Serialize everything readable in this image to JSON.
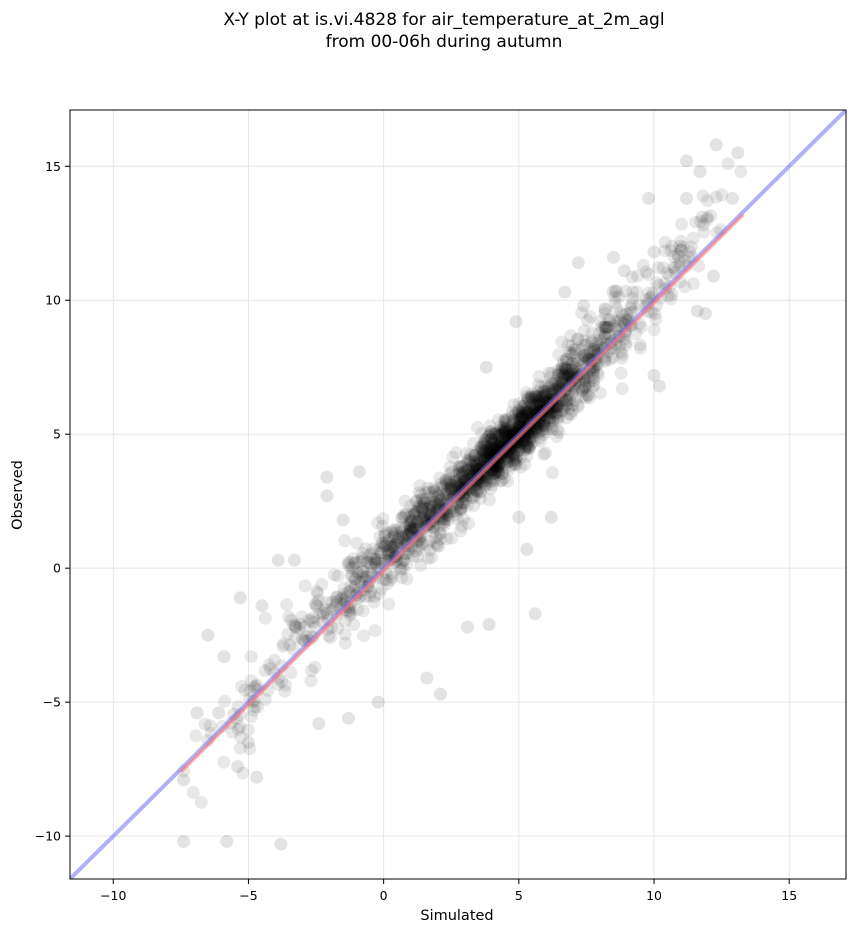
{
  "chart_data": {
    "type": "scatter",
    "title_lines": [
      "X-Y plot at is.vi.4828 for air_temperature_at_2m_agl",
      "from 00-06h during autumn"
    ],
    "xlabel": "Simulated",
    "ylabel": "Observed",
    "xlim": [
      -11.6,
      17.1
    ],
    "ylim": [
      -11.6,
      17.1
    ],
    "xticks": [
      -10,
      -5,
      0,
      5,
      10,
      15
    ],
    "yticks": [
      -10,
      -5,
      0,
      5,
      10,
      15
    ],
    "xtick_labels": [
      "−10",
      "−5",
      "0",
      "5",
      "10",
      "15"
    ],
    "ytick_labels": [
      "−10",
      "−5",
      "0",
      "5",
      "10",
      "15"
    ],
    "grid": true,
    "point_color": "#000000",
    "point_opacity": 0.09,
    "series": [
      {
        "kind": "one-to-one line",
        "color": "#6f6ff0",
        "x": [
          -11.6,
          17.1
        ],
        "y": [
          -11.6,
          17.1
        ]
      },
      {
        "kind": "regression line",
        "color": "#ff7777",
        "x": [
          -7.5,
          13.3
        ],
        "y": [
          -7.6,
          13.2
        ]
      }
    ],
    "point_clusters": [
      {
        "center": [
          4.5,
          4.6
        ],
        "spread": [
          1.1,
          1.0
        ],
        "count": 650
      },
      {
        "center": [
          2.4,
          2.5
        ],
        "spread": [
          1.5,
          1.3
        ],
        "count": 330
      },
      {
        "center": [
          6.3,
          6.4
        ],
        "spread": [
          1.1,
          1.1
        ],
        "count": 330
      },
      {
        "center": [
          8.5,
          9.0
        ],
        "spread": [
          1.4,
          1.5
        ],
        "count": 170
      },
      {
        "center": [
          0.3,
          0.6
        ],
        "spread": [
          1.4,
          1.4
        ],
        "count": 180
      },
      {
        "center": [
          -2.0,
          -1.9
        ],
        "spread": [
          1.6,
          1.6
        ],
        "count": 100
      },
      {
        "center": [
          -4.8,
          -4.8
        ],
        "spread": [
          1.2,
          1.6
        ],
        "count": 55
      },
      {
        "center": [
          11.3,
          12.1
        ],
        "spread": [
          0.9,
          1.4
        ],
        "count": 40
      }
    ],
    "outlier_points": [
      [
        -7.4,
        -10.2
      ],
      [
        -5.8,
        -10.2
      ],
      [
        -3.8,
        -10.3
      ],
      [
        -7.4,
        -7.9
      ],
      [
        -6.5,
        -2.5
      ],
      [
        -6.9,
        -5.4
      ],
      [
        -6.1,
        -5.4
      ],
      [
        -5.4,
        -7.4
      ],
      [
        -5.0,
        -6.5
      ],
      [
        -4.7,
        -7.8
      ],
      [
        -5.9,
        -3.3
      ],
      [
        -5.3,
        -1.1
      ],
      [
        -4.5,
        -1.4
      ],
      [
        -3.9,
        0.3
      ],
      [
        -3.3,
        0.3
      ],
      [
        -2.1,
        3.4
      ],
      [
        -2.1,
        2.7
      ],
      [
        -1.5,
        1.8
      ],
      [
        -0.9,
        3.6
      ],
      [
        -0.2,
        -5.0
      ],
      [
        -1.3,
        -5.6
      ],
      [
        -2.4,
        -5.8
      ],
      [
        1.6,
        -4.1
      ],
      [
        2.1,
        -4.7
      ],
      [
        3.1,
        -2.2
      ],
      [
        3.9,
        -2.1
      ],
      [
        5.6,
        -1.7
      ],
      [
        5.3,
        0.7
      ],
      [
        6.2,
        1.9
      ],
      [
        5.0,
        1.9
      ],
      [
        3.8,
        7.5
      ],
      [
        4.9,
        9.2
      ],
      [
        6.7,
        10.3
      ],
      [
        7.2,
        11.4
      ],
      [
        8.9,
        11.1
      ],
      [
        10.2,
        6.8
      ],
      [
        10.0,
        7.2
      ],
      [
        11.2,
        15.2
      ],
      [
        12.3,
        15.8
      ],
      [
        13.1,
        15.5
      ],
      [
        11.7,
        14.8
      ],
      [
        11.2,
        13.8
      ],
      [
        12.9,
        13.8
      ],
      [
        11.6,
        9.6
      ],
      [
        11.9,
        9.5
      ],
      [
        12.2,
        10.9
      ],
      [
        9.8,
        13.8
      ],
      [
        10.0,
        11.8
      ],
      [
        8.5,
        11.6
      ],
      [
        7.4,
        9.8
      ]
    ]
  }
}
